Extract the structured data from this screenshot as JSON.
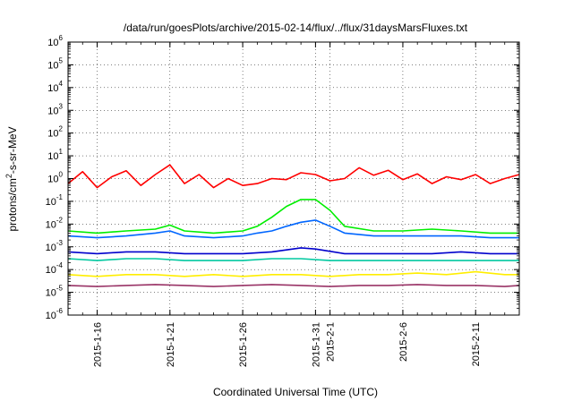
{
  "chart_data": {
    "type": "line",
    "title": "/data/run/goesPlots/archive/2015-02-14/flux/../flux/31daysMarsFluxes.txt",
    "xlabel": "Coordinated Universal Time (UTC)",
    "ylabel_parts": [
      "protons/cm",
      "2",
      "-s-sr-MeV"
    ],
    "yscale": "log",
    "xlim": [
      "2015-01-14",
      "2015-02-14"
    ],
    "ylim_exponents": [
      -6,
      6
    ],
    "y_tick_labels": [
      {
        "base": "10",
        "exp": "-6"
      },
      {
        "base": "10",
        "exp": "-5"
      },
      {
        "base": "10",
        "exp": "-4"
      },
      {
        "base": "10",
        "exp": "-3"
      },
      {
        "base": "10",
        "exp": "-2"
      },
      {
        "base": "10",
        "exp": "-1"
      },
      {
        "base": "10",
        "exp": "0"
      },
      {
        "base": "10",
        "exp": "1"
      },
      {
        "base": "10",
        "exp": "2"
      },
      {
        "base": "10",
        "exp": "3"
      },
      {
        "base": "10",
        "exp": "4"
      },
      {
        "base": "10",
        "exp": "5"
      },
      {
        "base": "10",
        "exp": "6"
      }
    ],
    "x_ticks": [
      {
        "date": "2015-01-16",
        "label": "2015-1-16"
      },
      {
        "date": "2015-01-21",
        "label": "2015-1-21"
      },
      {
        "date": "2015-01-26",
        "label": "2015-1-26"
      },
      {
        "date": "2015-01-31",
        "label": "2015-1-31"
      },
      {
        "date": "2015-02-01",
        "label": "2015-2-1"
      },
      {
        "date": "2015-02-06",
        "label": "2015-2-6"
      },
      {
        "date": "2015-02-11",
        "label": "2015-2-11"
      }
    ],
    "grid": true,
    "legend": "none",
    "series": [
      {
        "color": "#ff0000",
        "x": [
          "2015-01-14",
          "2015-01-15",
          "2015-01-16",
          "2015-01-17",
          "2015-01-18",
          "2015-01-19",
          "2015-01-20",
          "2015-01-21",
          "2015-01-22",
          "2015-01-23",
          "2015-01-24",
          "2015-01-25",
          "2015-01-26",
          "2015-01-27",
          "2015-01-28",
          "2015-01-29",
          "2015-01-30",
          "2015-01-31",
          "2015-02-01",
          "2015-02-02",
          "2015-02-03",
          "2015-02-04",
          "2015-02-05",
          "2015-02-06",
          "2015-02-07",
          "2015-02-08",
          "2015-02-09",
          "2015-02-10",
          "2015-02-11",
          "2015-02-12",
          "2015-02-13",
          "2015-02-14"
        ],
        "y": [
          0.6,
          2.0,
          0.4,
          1.2,
          2.2,
          0.5,
          1.5,
          4.0,
          0.6,
          1.5,
          0.4,
          1.0,
          0.5,
          0.6,
          1.0,
          0.9,
          1.8,
          1.5,
          0.8,
          1.0,
          3.0,
          1.4,
          2.3,
          0.9,
          1.6,
          0.6,
          1.2,
          0.9,
          1.5,
          0.6,
          1.0,
          1.5
        ]
      },
      {
        "color": "#00ee00",
        "x": [
          "2015-01-14",
          "2015-01-16",
          "2015-01-18",
          "2015-01-20",
          "2015-01-21",
          "2015-01-22",
          "2015-01-24",
          "2015-01-26",
          "2015-01-27",
          "2015-01-28",
          "2015-01-29",
          "2015-01-30",
          "2015-01-31",
          "2015-02-01",
          "2015-02-02",
          "2015-02-04",
          "2015-02-06",
          "2015-02-08",
          "2015-02-10",
          "2015-02-12",
          "2015-02-14"
        ],
        "y": [
          0.005,
          0.004,
          0.005,
          0.006,
          0.009,
          0.005,
          0.004,
          0.005,
          0.008,
          0.02,
          0.06,
          0.12,
          0.12,
          0.04,
          0.008,
          0.005,
          0.005,
          0.006,
          0.005,
          0.004,
          0.004
        ]
      },
      {
        "color": "#0066ff",
        "x": [
          "2015-01-14",
          "2015-01-16",
          "2015-01-18",
          "2015-01-20",
          "2015-01-21",
          "2015-01-22",
          "2015-01-24",
          "2015-01-26",
          "2015-01-27",
          "2015-01-28",
          "2015-01-29",
          "2015-01-30",
          "2015-01-31",
          "2015-02-01",
          "2015-02-02",
          "2015-02-04",
          "2015-02-06",
          "2015-02-08",
          "2015-02-10",
          "2015-02-12",
          "2015-02-14"
        ],
        "y": [
          0.003,
          0.0025,
          0.003,
          0.004,
          0.005,
          0.003,
          0.0025,
          0.003,
          0.004,
          0.005,
          0.008,
          0.012,
          0.015,
          0.008,
          0.004,
          0.003,
          0.003,
          0.003,
          0.003,
          0.0025,
          0.0025
        ]
      },
      {
        "color": "#0000cc",
        "x": [
          "2015-01-14",
          "2015-01-16",
          "2015-01-18",
          "2015-01-20",
          "2015-01-22",
          "2015-01-24",
          "2015-01-26",
          "2015-01-28",
          "2015-01-30",
          "2015-01-31",
          "2015-02-02",
          "2015-02-04",
          "2015-02-06",
          "2015-02-08",
          "2015-02-10",
          "2015-02-12",
          "2015-02-14"
        ],
        "y": [
          0.0006,
          0.0005,
          0.0006,
          0.0006,
          0.0005,
          0.0005,
          0.0005,
          0.0006,
          0.0009,
          0.0008,
          0.0005,
          0.0005,
          0.0005,
          0.0005,
          0.0006,
          0.0005,
          0.0005
        ]
      },
      {
        "color": "#00c8a0",
        "x": [
          "2015-01-14",
          "2015-01-16",
          "2015-01-18",
          "2015-01-20",
          "2015-01-22",
          "2015-01-24",
          "2015-01-26",
          "2015-01-28",
          "2015-01-30",
          "2015-02-01",
          "2015-02-03",
          "2015-02-05",
          "2015-02-07",
          "2015-02-09",
          "2015-02-11",
          "2015-02-13",
          "2015-02-14"
        ],
        "y": [
          0.0003,
          0.00025,
          0.0003,
          0.0003,
          0.00025,
          0.00025,
          0.00025,
          0.0003,
          0.0003,
          0.00025,
          0.00025,
          0.00025,
          0.00025,
          0.00025,
          0.00025,
          0.00025,
          0.00025
        ]
      },
      {
        "color": "#ffee00",
        "x": [
          "2015-01-14",
          "2015-01-16",
          "2015-01-18",
          "2015-01-20",
          "2015-01-22",
          "2015-01-24",
          "2015-01-26",
          "2015-01-28",
          "2015-01-30",
          "2015-02-01",
          "2015-02-03",
          "2015-02-05",
          "2015-02-07",
          "2015-02-09",
          "2015-02-11",
          "2015-02-13",
          "2015-02-14"
        ],
        "y": [
          6e-05,
          5e-05,
          6e-05,
          6e-05,
          5e-05,
          6e-05,
          5e-05,
          6e-05,
          6e-05,
          5e-05,
          6e-05,
          6e-05,
          7e-05,
          6e-05,
          8e-05,
          6e-05,
          6e-05
        ]
      },
      {
        "color": "#993366",
        "x": [
          "2015-01-14",
          "2015-01-16",
          "2015-01-18",
          "2015-01-20",
          "2015-01-22",
          "2015-01-24",
          "2015-01-26",
          "2015-01-28",
          "2015-01-30",
          "2015-02-01",
          "2015-02-03",
          "2015-02-05",
          "2015-02-07",
          "2015-02-09",
          "2015-02-11",
          "2015-02-13",
          "2015-02-14"
        ],
        "y": [
          2e-05,
          1.8e-05,
          2e-05,
          2.2e-05,
          2e-05,
          1.8e-05,
          2e-05,
          2.2e-05,
          2e-05,
          1.8e-05,
          2e-05,
          2e-05,
          2.2e-05,
          2e-05,
          2e-05,
          1.8e-05,
          2e-05
        ]
      }
    ]
  }
}
